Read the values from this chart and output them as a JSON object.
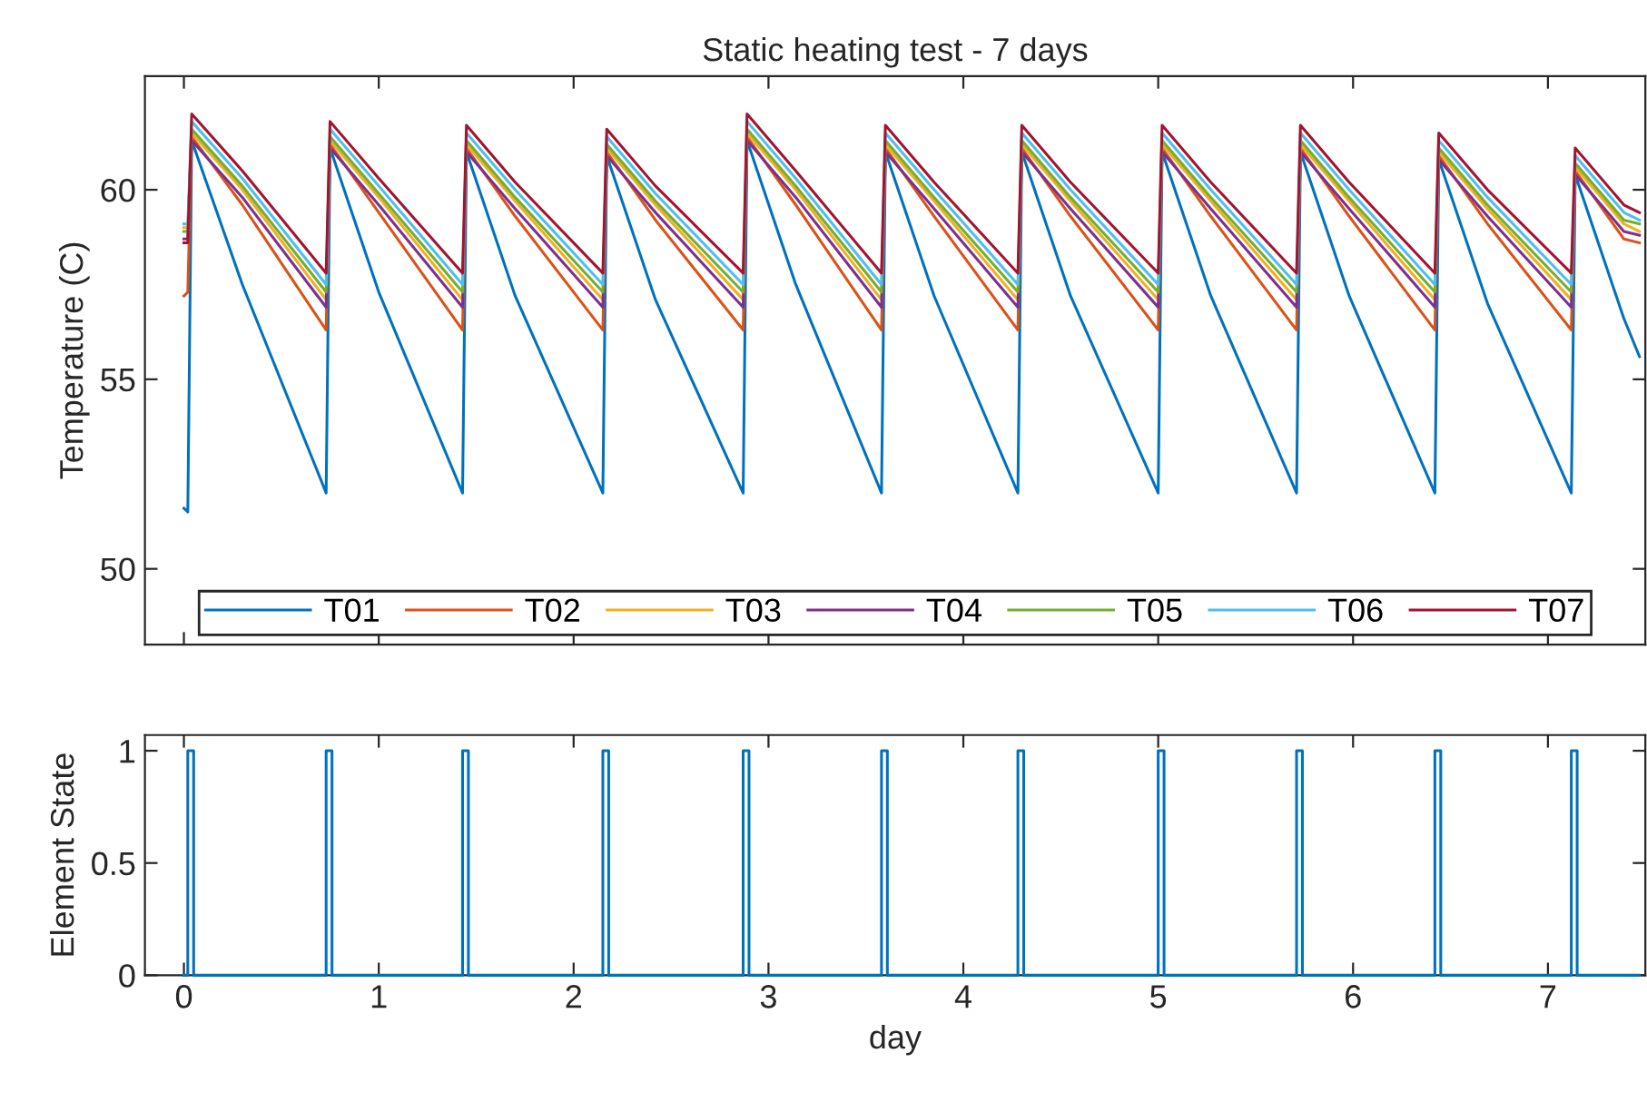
{
  "chart_data": [
    {
      "type": "line",
      "title": "Static heating test - 7 days",
      "ylabel": "Temperature (C)",
      "xlim": [
        -0.2,
        7.5
      ],
      "xticks": [
        0,
        1,
        2,
        3,
        4,
        5,
        6,
        7
      ],
      "ylim": [
        48,
        63
      ],
      "yticks": [
        50,
        55,
        60
      ],
      "tick_labels": "y",
      "grid": false,
      "legend": "bottom",
      "line_style": "solid",
      "marker": "none",
      "x": [
        0.0,
        0.02,
        0.04,
        0.3,
        0.73,
        0.75,
        1.0,
        1.43,
        1.45,
        1.7,
        2.15,
        2.17,
        2.42,
        2.87,
        2.89,
        3.14,
        3.58,
        3.6,
        3.85,
        4.28,
        4.3,
        4.55,
        5.0,
        5.02,
        5.27,
        5.71,
        5.73,
        5.98,
        6.42,
        6.44,
        6.69,
        7.12,
        7.14,
        7.39,
        7.47
      ],
      "series": [
        {
          "name": "T01",
          "color": "#0072bd",
          "values": [
            51.6,
            51.5,
            61.3,
            57.5,
            52.0,
            61.1,
            57.3,
            52.0,
            61.0,
            57.2,
            52.0,
            60.9,
            57.1,
            52.0,
            61.3,
            57.5,
            52.0,
            61.0,
            57.2,
            52.0,
            61.0,
            57.2,
            52.0,
            61.0,
            57.2,
            52.0,
            61.0,
            57.2,
            52.0,
            60.8,
            57.0,
            52.0,
            60.4,
            56.6,
            55.6
          ]
        },
        {
          "name": "T02",
          "color": "#d95319",
          "values": [
            57.2,
            57.3,
            61.4,
            59.6,
            56.3,
            61.2,
            59.4,
            56.3,
            61.1,
            59.3,
            56.3,
            61.0,
            59.2,
            56.3,
            61.4,
            59.6,
            56.3,
            61.1,
            59.3,
            56.3,
            61.1,
            59.3,
            56.3,
            61.1,
            59.3,
            56.3,
            61.1,
            59.3,
            56.3,
            60.9,
            59.1,
            56.3,
            60.5,
            58.7,
            58.6
          ]
        },
        {
          "name": "T03",
          "color": "#edb120",
          "values": [
            59.0,
            59.0,
            61.5,
            60.0,
            57.1,
            61.3,
            59.8,
            57.1,
            61.2,
            59.7,
            57.1,
            61.1,
            59.6,
            57.1,
            61.5,
            60.0,
            57.1,
            61.2,
            59.7,
            57.1,
            61.2,
            59.7,
            57.1,
            61.2,
            59.7,
            57.1,
            61.2,
            59.7,
            57.1,
            61.0,
            59.5,
            57.1,
            60.6,
            59.1,
            58.9
          ]
        },
        {
          "name": "T04",
          "color": "#7e2f8e",
          "values": [
            58.7,
            58.7,
            61.3,
            59.8,
            56.9,
            61.1,
            59.6,
            56.9,
            61.0,
            59.5,
            56.9,
            60.9,
            59.4,
            56.9,
            61.3,
            59.8,
            56.9,
            61.0,
            59.5,
            56.9,
            61.0,
            59.5,
            56.9,
            61.0,
            59.5,
            56.9,
            61.0,
            59.5,
            56.9,
            60.8,
            59.3,
            56.9,
            60.4,
            58.9,
            58.8
          ]
        },
        {
          "name": "T05",
          "color": "#77ac30",
          "values": [
            58.9,
            58.9,
            61.6,
            60.1,
            57.3,
            61.4,
            59.9,
            57.3,
            61.3,
            59.8,
            57.3,
            61.2,
            59.7,
            57.3,
            61.6,
            60.1,
            57.3,
            61.3,
            59.8,
            57.3,
            61.3,
            59.8,
            57.3,
            61.3,
            59.8,
            57.3,
            61.3,
            59.8,
            57.3,
            61.1,
            59.6,
            57.3,
            60.7,
            59.2,
            59.1
          ]
        },
        {
          "name": "T06",
          "color": "#4dbeee",
          "values": [
            59.1,
            59.1,
            61.8,
            60.3,
            57.5,
            61.6,
            60.1,
            57.5,
            61.5,
            60.0,
            57.5,
            61.4,
            59.9,
            57.5,
            61.8,
            60.3,
            57.5,
            61.5,
            60.0,
            57.5,
            61.5,
            60.0,
            57.5,
            61.5,
            60.0,
            57.5,
            61.5,
            60.0,
            57.5,
            61.3,
            59.8,
            57.5,
            60.9,
            59.4,
            59.2
          ]
        },
        {
          "name": "T07",
          "color": "#a2142f",
          "values": [
            58.6,
            58.6,
            62.0,
            60.5,
            57.8,
            61.8,
            60.3,
            57.8,
            61.7,
            60.2,
            57.8,
            61.6,
            60.1,
            57.8,
            62.0,
            60.5,
            57.8,
            61.7,
            60.2,
            57.8,
            61.7,
            60.2,
            57.8,
            61.7,
            60.2,
            57.8,
            61.7,
            60.2,
            57.8,
            61.5,
            60.0,
            57.8,
            61.1,
            59.6,
            59.4
          ]
        }
      ]
    },
    {
      "type": "line",
      "xlabel": "day",
      "ylabel": "Element State",
      "xlim": [
        -0.2,
        7.5
      ],
      "xticks": [
        0,
        1,
        2,
        3,
        4,
        5,
        6,
        7
      ],
      "ylim": [
        0,
        1.07
      ],
      "yticks": [
        0,
        0.5,
        1
      ],
      "grid": false,
      "line_style": "solid",
      "marker": "none",
      "x": [
        0.0,
        0.02,
        0.02,
        0.05,
        0.05,
        0.73,
        0.73,
        0.76,
        0.76,
        1.43,
        1.43,
        1.46,
        1.46,
        2.15,
        2.15,
        2.18,
        2.18,
        2.87,
        2.87,
        2.9,
        2.9,
        3.58,
        3.58,
        3.61,
        3.61,
        4.28,
        4.28,
        4.31,
        4.31,
        5.0,
        5.0,
        5.03,
        5.03,
        5.71,
        5.71,
        5.74,
        5.74,
        6.42,
        6.42,
        6.45,
        6.45,
        7.12,
        7.12,
        7.15,
        7.15,
        7.47
      ],
      "series": [
        {
          "color": "#0072bd",
          "values": [
            0,
            0,
            1,
            1,
            0,
            0,
            1,
            1,
            0,
            0,
            1,
            1,
            0,
            0,
            1,
            1,
            0,
            0,
            1,
            1,
            0,
            0,
            1,
            1,
            0,
            0,
            1,
            1,
            0,
            0,
            1,
            1,
            0,
            0,
            1,
            1,
            0,
            0,
            1,
            1,
            0,
            0,
            1,
            1,
            0,
            0
          ]
        }
      ]
    }
  ]
}
